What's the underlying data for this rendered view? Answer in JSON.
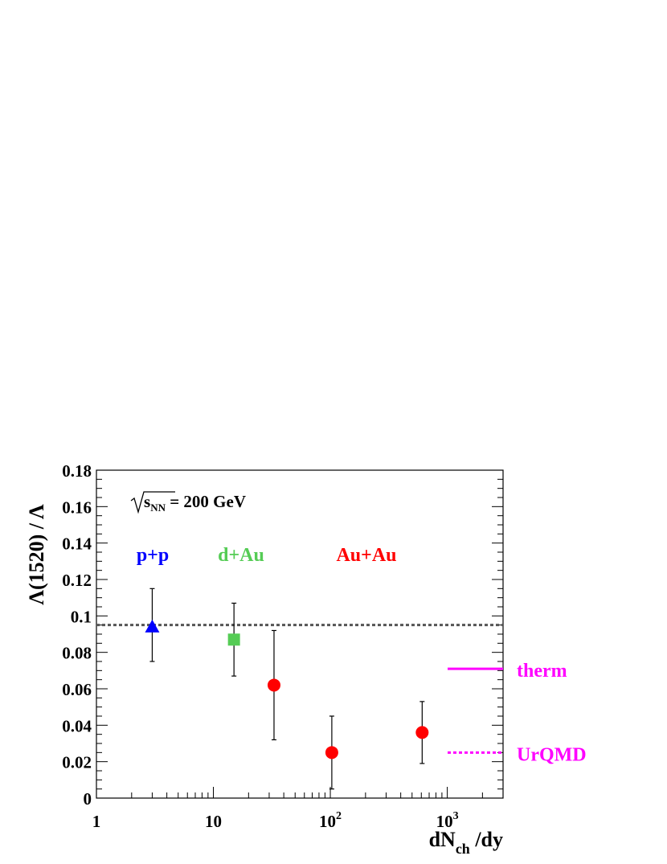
{
  "chart_data": {
    "type": "scatter",
    "energy_label": "= 200 GeV",
    "energy_symbol": "s",
    "energy_subscript": "NN",
    "xlabel_main": "dN",
    "xlabel_sub": "ch",
    "xlabel_tail": " /dy",
    "ylabel": "Λ(1520) / Λ",
    "xscale": "log",
    "xlim": [
      1,
      3000
    ],
    "ylim": [
      0,
      0.18
    ],
    "x_ticks": [
      {
        "value": 1,
        "base": "1",
        "exp": ""
      },
      {
        "value": 10,
        "base": "10",
        "exp": ""
      },
      {
        "value": 100,
        "base": "10",
        "exp": "2"
      },
      {
        "value": 1000,
        "base": "10",
        "exp": "3"
      }
    ],
    "y_ticks": [
      {
        "value": 0,
        "label": "0"
      },
      {
        "value": 0.02,
        "label": "0.02"
      },
      {
        "value": 0.04,
        "label": "0.04"
      },
      {
        "value": 0.06,
        "label": "0.06"
      },
      {
        "value": 0.08,
        "label": "0.08"
      },
      {
        "value": 0.1,
        "label": "0.1"
      },
      {
        "value": 0.12,
        "label": "0.12"
      },
      {
        "value": 0.14,
        "label": "0.14"
      },
      {
        "value": 0.16,
        "label": "0.16"
      },
      {
        "value": 0.18,
        "label": "0.18"
      }
    ],
    "series": [
      {
        "name": "p+p",
        "color": "#0000ff",
        "marker": "triangle",
        "points": [
          {
            "x": 3,
            "y": 0.094,
            "err_low": 0.075,
            "err_high": 0.115
          }
        ]
      },
      {
        "name": "d+Au",
        "color": "#55cc55",
        "marker": "square",
        "points": [
          {
            "x": 15,
            "y": 0.087,
            "err_low": 0.067,
            "err_high": 0.107
          }
        ]
      },
      {
        "name": "Au+Au",
        "color": "#ff0000",
        "marker": "circle",
        "points": [
          {
            "x": 33,
            "y": 0.062,
            "err_low": 0.032,
            "err_high": 0.092
          },
          {
            "x": 103,
            "y": 0.025,
            "err_low": 0.005,
            "err_high": 0.045
          },
          {
            "x": 610,
            "y": 0.036,
            "err_low": 0.019,
            "err_high": 0.053
          }
        ]
      }
    ],
    "reference_line": {
      "y": 0.095,
      "color": "#555555",
      "style": "dotted"
    },
    "models": [
      {
        "name": "therm",
        "y": 0.071,
        "color": "#ff00ff",
        "style": "solid"
      },
      {
        "name": "UrQMD",
        "y": 0.025,
        "color": "#ff00ff",
        "style": "dotted"
      }
    ]
  }
}
